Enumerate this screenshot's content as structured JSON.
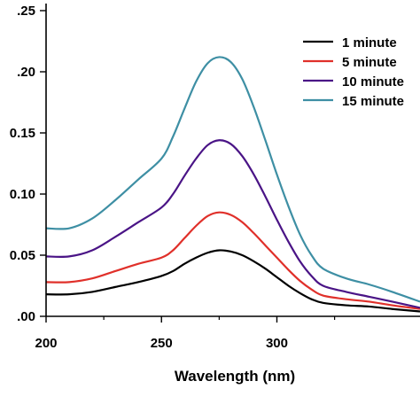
{
  "chart_data": {
    "type": "line",
    "title": "",
    "xlabel": "Wavelength (nm)",
    "ylabel": "",
    "xlim": [
      200,
      362
    ],
    "ylim": [
      0.0,
      0.25
    ],
    "x_ticks": [
      200,
      250,
      300
    ],
    "x_tick_labels": [
      "200",
      "250",
      "300"
    ],
    "y_ticks": [
      0.0,
      0.05,
      0.1,
      0.15,
      0.2,
      0.25
    ],
    "y_tick_labels": [
      ".00",
      "0.05",
      "0.10",
      "0.15",
      ".20",
      ".25"
    ],
    "grid": false,
    "legend_position": "top-right",
    "series": [
      {
        "name": "1 minute",
        "color": "#000000",
        "points": [
          [
            200,
            0.018
          ],
          [
            210,
            0.018
          ],
          [
            220,
            0.02
          ],
          [
            230,
            0.024
          ],
          [
            240,
            0.028
          ],
          [
            250,
            0.033
          ],
          [
            255,
            0.037
          ],
          [
            260,
            0.043
          ],
          [
            265,
            0.048
          ],
          [
            270,
            0.052
          ],
          [
            275,
            0.054
          ],
          [
            280,
            0.053
          ],
          [
            285,
            0.05
          ],
          [
            290,
            0.045
          ],
          [
            295,
            0.039
          ],
          [
            300,
            0.032
          ],
          [
            305,
            0.025
          ],
          [
            310,
            0.019
          ],
          [
            315,
            0.014
          ],
          [
            320,
            0.011
          ],
          [
            330,
            0.009
          ],
          [
            340,
            0.008
          ],
          [
            350,
            0.006
          ],
          [
            362,
            0.004
          ]
        ]
      },
      {
        "name": "5 minute",
        "color": "#e0302a",
        "points": [
          [
            200,
            0.028
          ],
          [
            210,
            0.028
          ],
          [
            220,
            0.031
          ],
          [
            230,
            0.037
          ],
          [
            240,
            0.043
          ],
          [
            250,
            0.048
          ],
          [
            255,
            0.054
          ],
          [
            260,
            0.064
          ],
          [
            265,
            0.074
          ],
          [
            270,
            0.082
          ],
          [
            275,
            0.085
          ],
          [
            280,
            0.083
          ],
          [
            285,
            0.077
          ],
          [
            290,
            0.068
          ],
          [
            295,
            0.058
          ],
          [
            300,
            0.048
          ],
          [
            305,
            0.038
          ],
          [
            310,
            0.029
          ],
          [
            315,
            0.022
          ],
          [
            320,
            0.017
          ],
          [
            330,
            0.014
          ],
          [
            340,
            0.012
          ],
          [
            350,
            0.009
          ],
          [
            362,
            0.006
          ]
        ]
      },
      {
        "name": "10 minute",
        "color": "#4a1486",
        "points": [
          [
            200,
            0.049
          ],
          [
            210,
            0.049
          ],
          [
            220,
            0.054
          ],
          [
            230,
            0.065
          ],
          [
            240,
            0.077
          ],
          [
            250,
            0.089
          ],
          [
            255,
            0.1
          ],
          [
            260,
            0.115
          ],
          [
            265,
            0.129
          ],
          [
            270,
            0.14
          ],
          [
            275,
            0.144
          ],
          [
            280,
            0.141
          ],
          [
            285,
            0.131
          ],
          [
            290,
            0.116
          ],
          [
            295,
            0.098
          ],
          [
            300,
            0.079
          ],
          [
            305,
            0.061
          ],
          [
            310,
            0.045
          ],
          [
            315,
            0.033
          ],
          [
            320,
            0.025
          ],
          [
            330,
            0.02
          ],
          [
            340,
            0.016
          ],
          [
            350,
            0.012
          ],
          [
            362,
            0.007
          ]
        ]
      },
      {
        "name": "15 minute",
        "color": "#3e8fa4",
        "points": [
          [
            200,
            0.072
          ],
          [
            210,
            0.072
          ],
          [
            220,
            0.08
          ],
          [
            230,
            0.095
          ],
          [
            240,
            0.112
          ],
          [
            250,
            0.129
          ],
          [
            255,
            0.147
          ],
          [
            260,
            0.17
          ],
          [
            265,
            0.192
          ],
          [
            270,
            0.207
          ],
          [
            275,
            0.212
          ],
          [
            280,
            0.208
          ],
          [
            285,
            0.194
          ],
          [
            290,
            0.171
          ],
          [
            295,
            0.144
          ],
          [
            300,
            0.116
          ],
          [
            305,
            0.09
          ],
          [
            310,
            0.067
          ],
          [
            315,
            0.05
          ],
          [
            320,
            0.039
          ],
          [
            330,
            0.031
          ],
          [
            340,
            0.026
          ],
          [
            350,
            0.02
          ],
          [
            362,
            0.012
          ]
        ]
      }
    ]
  }
}
